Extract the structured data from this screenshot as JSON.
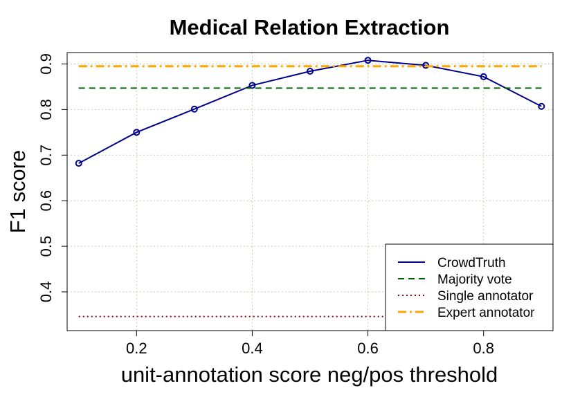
{
  "chart_data": {
    "type": "line",
    "title": "Medical Relation Extraction",
    "xlabel": "unit-annotation score neg/pos threshold",
    "ylabel": "F1 score",
    "xlim": [
      0.08,
      0.92
    ],
    "ylim": [
      0.315,
      0.925
    ],
    "xticks": [
      0.2,
      0.4,
      0.6,
      0.8
    ],
    "xtick_labels": [
      "0.2",
      "0.4",
      "0.6",
      "0.8"
    ],
    "yticks": [
      0.4,
      0.5,
      0.6,
      0.7,
      0.8,
      0.9
    ],
    "ytick_labels": [
      "0.4",
      "0.5",
      "0.6",
      "0.7",
      "0.8",
      "0.9"
    ],
    "grid": true,
    "legend_position": "bottom-right",
    "x": [
      0.1,
      0.2,
      0.3,
      0.4,
      0.5,
      0.6,
      0.7,
      0.8,
      0.9
    ],
    "series": [
      {
        "name": "CrowdTruth",
        "style": "solid",
        "markers": true,
        "color": "#00008b",
        "values": [
          0.682,
          0.75,
          0.801,
          0.853,
          0.884,
          0.908,
          0.897,
          0.872,
          0.807
        ]
      },
      {
        "name": "Majority vote",
        "style": "dashed",
        "color": "#006400",
        "constant": 0.847
      },
      {
        "name": "Single annotator",
        "style": "dotted",
        "color": "#8b0000",
        "constant": 0.346
      },
      {
        "name": "Expert annotator",
        "style": "dashdot",
        "color": "#ffa500",
        "constant": 0.895
      }
    ]
  }
}
